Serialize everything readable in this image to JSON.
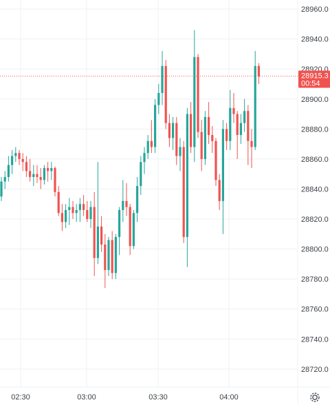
{
  "chart_data": {
    "type": "candlestick",
    "y_axis": {
      "ticks": [
        28960.0,
        28940.0,
        28920.0,
        28900.0,
        28880.0,
        28860.0,
        28840.0,
        28820.0,
        28800.0,
        28780.0,
        28760.0,
        28740.0,
        28720.0
      ],
      "tick_labels": [
        "28960.0",
        "28940.0",
        "28920.0",
        "28900.0",
        "28880.0",
        "28860.0",
        "28840.0",
        "28820.0",
        "28800.0",
        "28780.0",
        "28760.0",
        "28740.0",
        "28720.0"
      ],
      "range": [
        28708,
        28966
      ]
    },
    "x_axis": {
      "tick_labels": [
        "02:30",
        "03:00",
        "03:30",
        "04:00"
      ]
    },
    "last_price": {
      "value": 28915.3,
      "label": "28915.3",
      "countdown": "00:54"
    },
    "colors": {
      "up": "#26a69a",
      "down": "#ef5350",
      "price_line": "#ef5350",
      "price_tag": "#ef5350"
    },
    "candles": [
      [
        28835,
        28848,
        28832,
        28845
      ],
      [
        28845,
        28852,
        28840,
        28848
      ],
      [
        28848,
        28862,
        28845,
        28856
      ],
      [
        28856,
        28866,
        28850,
        28862
      ],
      [
        28862,
        28868,
        28858,
        28864
      ],
      [
        28864,
        28866,
        28856,
        28860
      ],
      [
        28860,
        28864,
        28852,
        28858
      ],
      [
        28858,
        28862,
        28848,
        28852
      ],
      [
        28852,
        28860,
        28845,
        28848
      ],
      [
        28848,
        28856,
        28842,
        28850
      ],
      [
        28850,
        28856,
        28844,
        28848
      ],
      [
        28848,
        28854,
        28840,
        28846
      ],
      [
        28846,
        28856,
        28843,
        28854
      ],
      [
        28854,
        28858,
        28845,
        28852
      ],
      [
        28852,
        28858,
        28846,
        28854
      ],
      [
        28854,
        28855,
        28835,
        28838
      ],
      [
        28838,
        28842,
        28822,
        28824
      ],
      [
        28824,
        28830,
        28812,
        28818
      ],
      [
        28818,
        28830,
        28814,
        28826
      ],
      [
        28826,
        28834,
        28816,
        28828
      ],
      [
        28828,
        28832,
        28820,
        28824
      ],
      [
        28824,
        28830,
        28818,
        28826
      ],
      [
        28826,
        28834,
        28818,
        28830
      ],
      [
        28830,
        28836,
        28822,
        28826
      ],
      [
        28826,
        28832,
        28818,
        28820
      ],
      [
        28820,
        28832,
        28814,
        28828
      ],
      [
        28828,
        28838,
        28782,
        28794
      ],
      [
        28794,
        28858,
        28790,
        28815
      ],
      [
        28815,
        28822,
        28798,
        28803
      ],
      [
        28803,
        28810,
        28774,
        28786
      ],
      [
        28786,
        28808,
        28782,
        28806
      ],
      [
        28806,
        28812,
        28780,
        28784
      ],
      [
        28784,
        28810,
        28780,
        28808
      ],
      [
        28808,
        28828,
        28796,
        28826
      ],
      [
        28826,
        28846,
        28818,
        28832
      ],
      [
        28832,
        28844,
        28822,
        28828
      ],
      [
        28828,
        28830,
        28796,
        28802
      ],
      [
        28802,
        28826,
        28800,
        28824
      ],
      [
        28824,
        28848,
        28818,
        28842
      ],
      [
        28842,
        28862,
        28836,
        28858
      ],
      [
        28858,
        28868,
        28850,
        28864
      ],
      [
        28864,
        28876,
        28860,
        28872
      ],
      [
        28872,
        28886,
        28864,
        28868
      ],
      [
        28868,
        28900,
        28864,
        28896
      ],
      [
        28896,
        28910,
        28890,
        28904
      ],
      [
        28904,
        28932,
        28896,
        28922
      ],
      [
        28922,
        28926,
        28880,
        28884
      ],
      [
        28884,
        28890,
        28868,
        28874
      ],
      [
        28874,
        28888,
        28866,
        28884
      ],
      [
        28884,
        28888,
        28856,
        28862
      ],
      [
        28862,
        28874,
        28852,
        28868
      ],
      [
        28868,
        28872,
        28804,
        28808
      ],
      [
        28808,
        28894,
        28788,
        28890
      ],
      [
        28890,
        28898,
        28864,
        28868
      ],
      [
        28868,
        28946,
        28858,
        28928
      ],
      [
        28928,
        28930,
        28874,
        28878
      ],
      [
        28878,
        28886,
        28852,
        28860
      ],
      [
        28860,
        28892,
        28856,
        28888
      ],
      [
        28888,
        28898,
        28870,
        28876
      ],
      [
        28876,
        28882,
        28864,
        28872
      ],
      [
        28872,
        28874,
        28842,
        28846
      ],
      [
        28846,
        28850,
        28826,
        28832
      ],
      [
        28832,
        28886,
        28810,
        28880
      ],
      [
        28880,
        28884,
        28866,
        28872
      ],
      [
        28872,
        28906,
        28866,
        28894
      ],
      [
        28894,
        28904,
        28884,
        28890
      ],
      [
        28890,
        28892,
        28860,
        28876
      ],
      [
        28876,
        28890,
        28870,
        28884
      ],
      [
        28884,
        28900,
        28878,
        28892
      ],
      [
        28892,
        28896,
        28856,
        28872
      ],
      [
        28872,
        28880,
        28854,
        28868
      ],
      [
        28868,
        28932,
        28866,
        28922
      ],
      [
        28922,
        28924,
        28910,
        28915
      ]
    ]
  },
  "settings": {
    "gear_icon": "gear-icon"
  }
}
